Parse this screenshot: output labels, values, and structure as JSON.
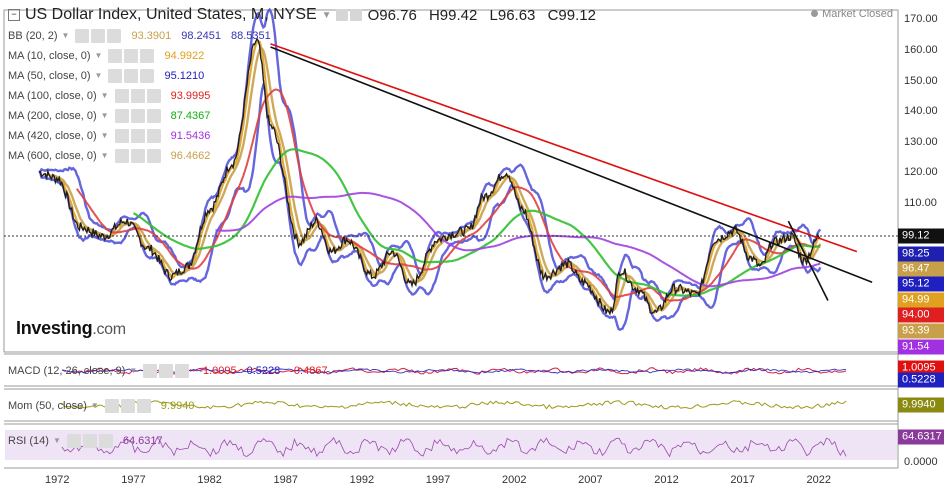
{
  "header": {
    "title": "US Dollar Index, United States, M, NYSE",
    "open": "O96.76",
    "high": "H99.42",
    "low": "L96.63",
    "close": "C99.12",
    "status": "Market Closed"
  },
  "indicators": [
    {
      "label": "BB (20, 2)",
      "values": [
        {
          "text": "93.3901",
          "color": "#c8a04a"
        },
        {
          "text": "98.2451",
          "color": "#3535b0"
        },
        {
          "text": "88.5351",
          "color": "#3535b0"
        }
      ]
    },
    {
      "label": "MA (10, close, 0)",
      "values": [
        {
          "text": "94.9922",
          "color": "#e0a020"
        }
      ]
    },
    {
      "label": "MA (50, close, 0)",
      "values": [
        {
          "text": "95.1210",
          "color": "#2020c0"
        }
      ]
    },
    {
      "label": "MA (100, close, 0)",
      "values": [
        {
          "text": "93.9995",
          "color": "#e02020"
        }
      ]
    },
    {
      "label": "MA (200, close, 0)",
      "values": [
        {
          "text": "87.4367",
          "color": "#10b010"
        }
      ]
    },
    {
      "label": "MA (420, close, 0)",
      "values": [
        {
          "text": "91.5436",
          "color": "#a030e0"
        }
      ]
    },
    {
      "label": "MA (600, close, 0)",
      "values": [
        {
          "text": "96.4662",
          "color": "#c8a04a"
        }
      ]
    }
  ],
  "panes": {
    "macd": {
      "label": "MACD (12, 26, close, 9)",
      "values": [
        {
          "text": "-1.0095",
          "color": "#e02020"
        },
        {
          "text": "0.5228",
          "color": "#2020c0"
        },
        {
          "text": "-0.4867",
          "color": "#e02020"
        }
      ],
      "tag": "1.0095",
      "tag_color": "#e01010",
      "tag2": "0.5228",
      "tag2_color": "#2020c0"
    },
    "mom": {
      "label": "Mom (50, close)",
      "values": [
        {
          "text": "9.9940",
          "color": "#9a9a1a"
        }
      ],
      "tag": "9.9940",
      "tag_color": "#8a8a10"
    },
    "rsi": {
      "label": "RSI (14)",
      "values": [
        {
          "text": "64.6317",
          "color": "#8a3a9a"
        }
      ],
      "tag": "64.6317",
      "tag_color": "#8a3a9a",
      "axis": "0.0000"
    }
  },
  "logo": {
    "main": "Investing",
    "suffix": ".com"
  },
  "chart_data": {
    "type": "line",
    "title": "US Dollar Index, United States, M, NYSE",
    "x_ticks": [
      "1972",
      "1977",
      "1982",
      "1987",
      "1992",
      "1997",
      "2002",
      "2007",
      "2012",
      "2017",
      "2022"
    ],
    "y_ticks": [
      "170.00",
      "160.00",
      "150.00",
      "140.00",
      "130.00",
      "120.00",
      "110.00",
      "99.12"
    ],
    "ylim": [
      80,
      172
    ],
    "price_tags": [
      {
        "text": "99.12",
        "color": "#111111",
        "value": 99.12
      },
      {
        "text": "98.25",
        "color": "#2020b0",
        "value": 98.25
      },
      {
        "text": "96.47",
        "color": "#c8a04a",
        "value": 96.47
      },
      {
        "text": "95.12",
        "color": "#2020c0",
        "value": 95.12
      },
      {
        "text": "94.99",
        "color": "#e0a020",
        "value": 94.99
      },
      {
        "text": "94.00",
        "color": "#e02020",
        "value": 94.0
      },
      {
        "text": "93.39",
        "color": "#c8a04a",
        "value": 93.39
      },
      {
        "text": "91.54",
        "color": "#a030e0",
        "value": 91.54
      }
    ],
    "series": [
      {
        "name": "Price",
        "color": "#1f1f1f",
        "x": [
          1970.8,
          1972,
          1973.5,
          1975,
          1976.5,
          1978,
          1979.5,
          1980.5,
          1982,
          1983.5,
          1985.1,
          1986,
          1987.9,
          1989,
          1990,
          1991,
          1992.7,
          1994,
          1995.2,
          1997,
          1998,
          1999,
          2000,
          2001.5,
          2002.5,
          2004,
          2005.5,
          2006.5,
          2008.3,
          2009,
          2010,
          2011.3,
          2012.5,
          2014,
          2015.2,
          2016.5,
          2017.5,
          2018.2,
          2019,
          2020.2,
          2021,
          2022.1
        ],
        "y": [
          120,
          118,
          102,
          99,
          104,
          95,
          86,
          89,
          108,
          123,
          163,
          135,
          97,
          104,
          94,
          98,
          86,
          94,
          83,
          98,
          100,
          101,
          112,
          120,
          108,
          86,
          90,
          84,
          74,
          88,
          82,
          74,
          82,
          80,
          98,
          101,
          92,
          89,
          97,
          99,
          91,
          99.12
        ]
      },
      {
        "name": "Trendline (upper)",
        "color": "#e01010",
        "x": [
          1986,
          2024.5
        ],
        "y": [
          162,
          94
        ]
      },
      {
        "name": "Trendline (lower)",
        "color": "#111111",
        "x": [
          1986,
          2025.5
        ],
        "y": [
          161,
          84
        ]
      },
      {
        "name": "Short trendline",
        "color": "#111111",
        "x": [
          2020,
          2022.6
        ],
        "y": [
          104,
          78
        ]
      }
    ]
  }
}
